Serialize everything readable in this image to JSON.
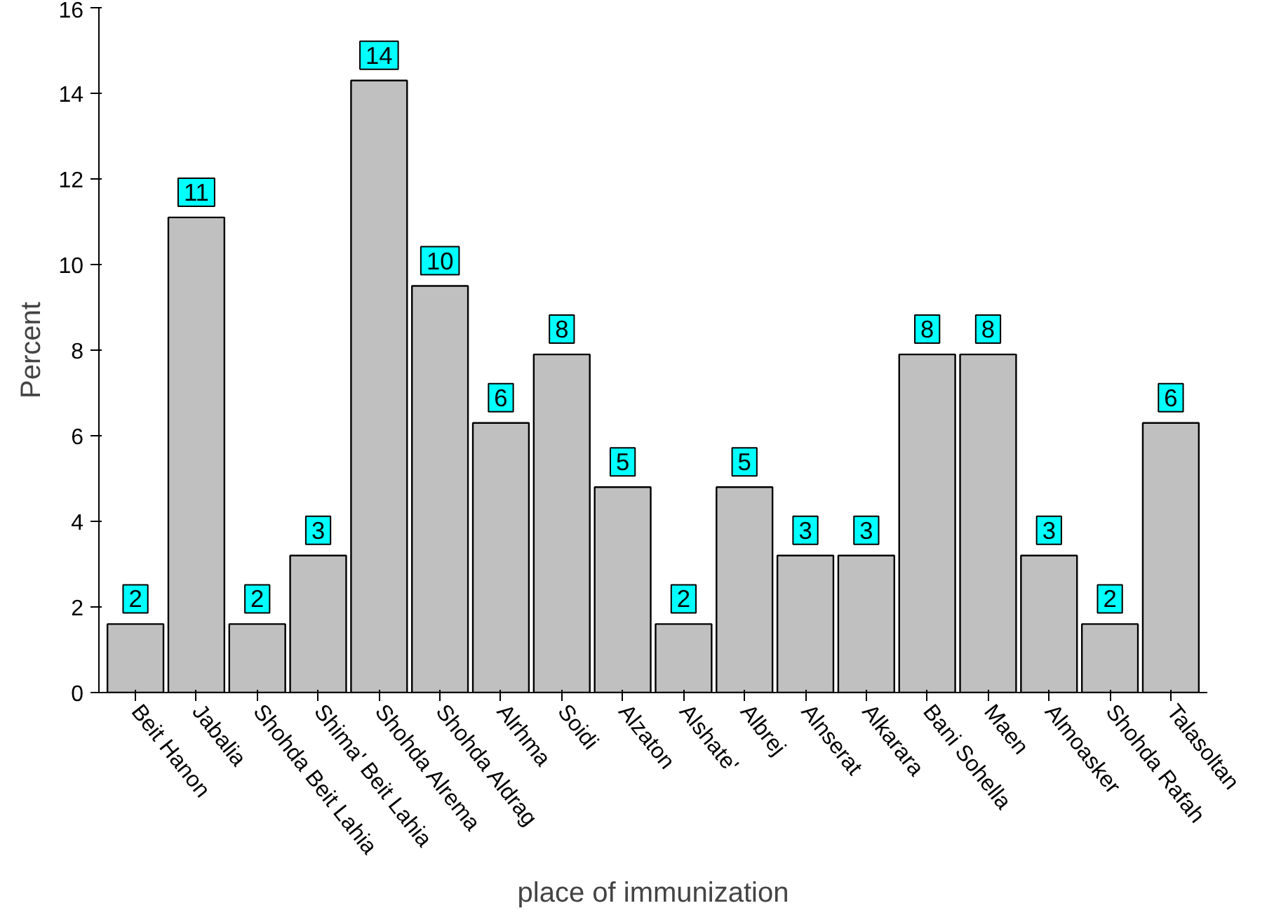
{
  "chart_data": {
    "type": "bar",
    "xlabel": "place of immunization",
    "ylabel": "Percent",
    "categories": [
      "Beit Hanon",
      "Jabalia",
      "Shohda Beit Lahia",
      "Shima' Beit Lahia",
      "Shohda Alrema",
      "Shohda Aldrag",
      "Alrhma",
      "Soidi",
      "Alzaton",
      "Alshate'",
      "Albrej",
      "Alnserat",
      "Alkarara",
      "Bani Sohella",
      "Maen",
      "Almoasker",
      "Shohda Rafah",
      "Talasoltan"
    ],
    "values": [
      1.6,
      11.1,
      1.6,
      3.2,
      14.3,
      9.5,
      6.3,
      7.9,
      4.8,
      1.6,
      4.8,
      3.2,
      3.2,
      7.9,
      7.9,
      3.2,
      1.6,
      6.3
    ],
    "value_labels": [
      "2",
      "11",
      "2",
      "3",
      "14",
      "10",
      "6",
      "8",
      "5",
      "2",
      "5",
      "3",
      "3",
      "8",
      "8",
      "3",
      "2",
      "6"
    ],
    "color": "#c0c0c0",
    "ylim": [
      0,
      16
    ],
    "yticks": [
      0,
      2,
      4,
      6,
      8,
      10,
      12,
      14,
      16
    ],
    "grid": false
  }
}
